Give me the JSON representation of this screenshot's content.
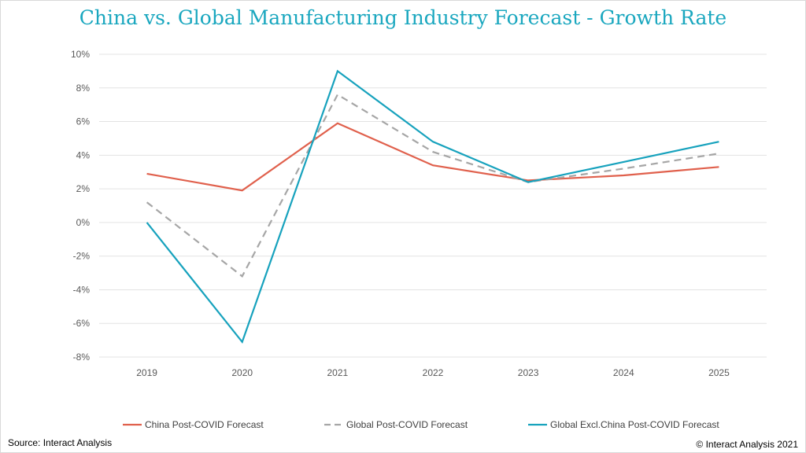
{
  "chart_data": {
    "type": "line",
    "title": "China vs. Global Manufacturing Industry Forecast - Growth Rate",
    "categories": [
      "2019",
      "2020",
      "2021",
      "2022",
      "2023",
      "2024",
      "2025"
    ],
    "ylim": [
      -8,
      10
    ],
    "yticks": [
      10,
      8,
      6,
      4,
      2,
      0,
      -2,
      -4,
      -6,
      -8
    ],
    "ytick_labels": [
      "10%",
      "8%",
      "6%",
      "4%",
      "2%",
      "0%",
      "-2%",
      "-4%",
      "-6%",
      "-8%"
    ],
    "grid": true,
    "legend_position": "bottom",
    "series": [
      {
        "name": "China Post-COVID Forecast",
        "color": "#e0604c",
        "dash": "solid",
        "values": [
          2.9,
          1.9,
          5.9,
          3.4,
          2.5,
          2.8,
          3.3
        ]
      },
      {
        "name": "Global Post-COVID Forecast",
        "color": "#a6a6a6",
        "dash": "dashed",
        "values": [
          1.2,
          -3.2,
          7.6,
          4.2,
          2.4,
          3.2,
          4.1
        ]
      },
      {
        "name": "Global Excl.China Post-COVID Forecast",
        "color": "#17a2bd",
        "dash": "solid",
        "values": [
          0.0,
          -7.1,
          9.0,
          4.8,
          2.4,
          3.6,
          4.8
        ]
      }
    ]
  },
  "footer": {
    "source": "Source: Interact Analysis",
    "copyright": "© Interact Analysis 2021"
  }
}
